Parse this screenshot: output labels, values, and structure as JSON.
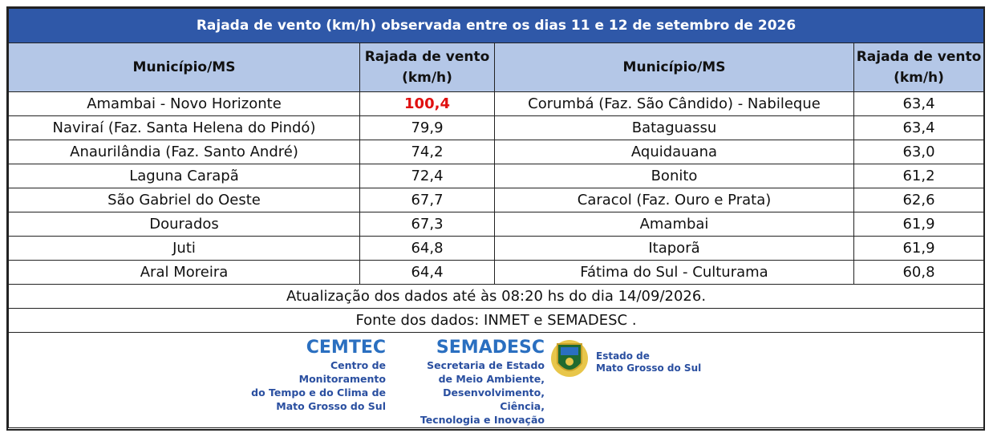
{
  "title": "Rajada de vento (km/h) observada entre os dias 11 e 12 de setembro de 2026",
  "table": {
    "header": [
      "Município/MS",
      "Rajada de vento (km/h)",
      "Município/MS",
      "Rajada de vento (km/h)"
    ],
    "rows": [
      [
        "Amambai - Novo Horizonte",
        "100,4",
        "Corumbá (Faz. São Cândido) - Nabileque",
        "63,4"
      ],
      [
        "Naviraí (Faz. Santa Helena do Pindó)",
        "79,9",
        "Bataguassu",
        "63,4"
      ],
      [
        "Anaurilândia (Faz. Santo André)",
        "74,2",
        "Aquidauana",
        "63,0"
      ],
      [
        "Laguna Carapã",
        "72,4",
        "Bonito",
        "61,2"
      ],
      [
        "São Gabriel do Oeste",
        "67,7",
        "Caracol (Faz. Ouro e Prata)",
        "62,6"
      ],
      [
        "Dourados",
        "67,3",
        "Amambai",
        "61,9"
      ],
      [
        "Juti",
        "64,8",
        "Itaporã",
        "61,9"
      ],
      [
        "Aral Moreira",
        "64,4",
        "Fátima do Sul - Culturama",
        "60,8"
      ]
    ]
  },
  "update_note": "Atualização dos dados até às 08:20 hs do dia 14/09/2026.",
  "source_note": "Fonte dos dados: INMET e SEMADESC .",
  "logos": {
    "cemtec": {
      "name": "CEMTEC",
      "lines": [
        "Centro de Monitoramento",
        "do Tempo e do Clima de",
        "Mato Grosso do Sul"
      ]
    },
    "semadesc": {
      "name": "SEMADESC",
      "lines": [
        "Secretaria de Estado",
        "de Meio Ambiente,",
        "Desenvolvimento, Ciência,",
        "Tecnologia e Inovação"
      ]
    },
    "state": {
      "lines": [
        "Estado de",
        "Mato Grosso do Sul"
      ]
    }
  }
}
